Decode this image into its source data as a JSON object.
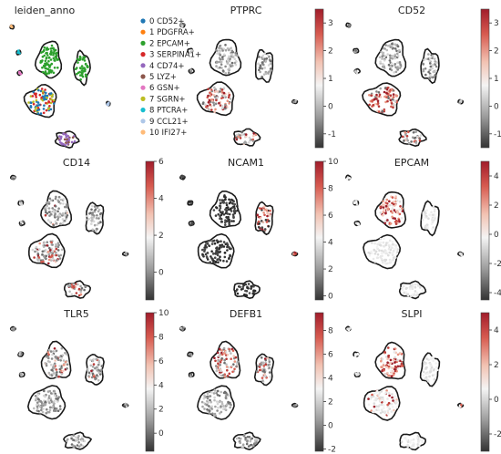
{
  "chart_data": [
    {
      "type": "scatter",
      "title": "leiden_anno",
      "legend_position": "right",
      "categories": [
        "0 CD52+",
        "1 PDGFRA+",
        "2 EPCAM+",
        "3 SERPINA1+",
        "4 CD74+",
        "5 LYZ+",
        "6 GSN+",
        "7 SGRN+",
        "8 PTCRA+",
        "9 CCL21+",
        "10 IFI27+"
      ],
      "colors": [
        "#1f77b4",
        "#ff7f0e",
        "#2ca02c",
        "#d62728",
        "#9467bd",
        "#8c564b",
        "#e377c2",
        "#bcbd22",
        "#17becf",
        "#aec7e8",
        "#ffbb78"
      ]
    },
    {
      "type": "scatter",
      "title": "PTPRC",
      "colorbar_ticks": [
        3,
        2,
        1,
        0,
        -1
      ],
      "colorbar_range": [
        -1.5,
        3.5
      ],
      "colormap": "grey-white-red"
    },
    {
      "type": "scatter",
      "title": "CD52",
      "colorbar_ticks": [
        3,
        2,
        1,
        0,
        -1
      ],
      "colorbar_range": [
        -1.5,
        3.5
      ],
      "colormap": "grey-white-red"
    },
    {
      "type": "scatter",
      "title": "CD14",
      "colorbar_ticks": [
        6,
        4,
        2,
        0
      ],
      "colorbar_range": [
        -1.5,
        6
      ],
      "colormap": "grey-white-red"
    },
    {
      "type": "scatter",
      "title": "NCAM1",
      "colorbar_ticks": [
        10,
        8,
        6,
        4,
        2,
        0
      ],
      "colorbar_range": [
        -0.3,
        10
      ],
      "colormap": "grey-white-red"
    },
    {
      "type": "scatter",
      "title": "EPCAM",
      "colorbar_ticks": [
        4,
        2,
        0,
        -2,
        -4
      ],
      "colorbar_range": [
        -4.5,
        5
      ],
      "colormap": "grey-white-red"
    },
    {
      "type": "scatter",
      "title": "TLR5",
      "colorbar_ticks": [
        10,
        8,
        6,
        4,
        2,
        0
      ],
      "colorbar_range": [
        -1.5,
        10
      ],
      "colormap": "grey-white-red"
    },
    {
      "type": "scatter",
      "title": "DEFB1",
      "colorbar_ticks": [
        8,
        6,
        4,
        2,
        0,
        -2
      ],
      "colorbar_range": [
        -2.2,
        9.5
      ],
      "colormap": "grey-white-red"
    },
    {
      "type": "scatter",
      "title": "SLPI",
      "colorbar_ticks": [
        4,
        2,
        0,
        -2
      ],
      "colorbar_range": [
        -3,
        5
      ],
      "colormap": "grey-white-red"
    }
  ],
  "style": {
    "cluster_colors": [
      "#1f77b4",
      "#ff7f0e",
      "#2ca02c",
      "#d62728",
      "#9467bd",
      "#8c564b",
      "#e377c2",
      "#bcbd22",
      "#17becf",
      "#aec7e8",
      "#ffbb78"
    ],
    "colormap_stops": [
      "#333333",
      "#9a9a9a",
      "#f4f4f4",
      "#f2c2b2",
      "#d75b50",
      "#a11d2b"
    ]
  }
}
